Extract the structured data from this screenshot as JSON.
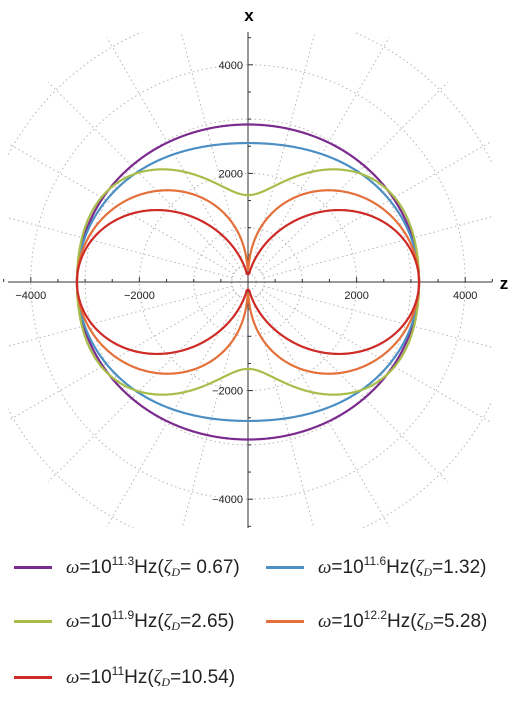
{
  "chart_data": {
    "type": "polar-line",
    "title": "",
    "xlabel": "z",
    "ylabel": "x",
    "xlim": [
      -4600,
      4600
    ],
    "ylim": [
      -4800,
      4800
    ],
    "x_ticks": [
      -4000,
      -2000,
      2000,
      4000
    ],
    "x_tick_labels": [
      "−4000",
      "−2000",
      "2000",
      "4000"
    ],
    "y_ticks": [
      4000,
      2000,
      -2000,
      -4000
    ],
    "y_tick_labels": [
      "4000",
      "2000",
      "−2000",
      "−4000"
    ],
    "grid": "polar-dotted",
    "polar_grid_radii": [
      1000,
      2000,
      3000,
      4000,
      5000
    ],
    "polar_grid_angle_step_deg": 15,
    "legend_position": "bottom",
    "series": [
      {
        "name": "ω=10^11.3 Hz(ζD= 0.67)",
        "omega_exp": "11.3",
        "zeta": " 0.67",
        "color": "#7b2a8e",
        "r_max_x": 2900,
        "r_max_z": 3150
      },
      {
        "name": "ω=10^11.6 Hz(ζD=1.32)",
        "omega_exp": "11.6",
        "zeta": "1.32",
        "color": "#4b8fc5",
        "r_max_x": 2560,
        "r_max_z": 3150
      },
      {
        "name": "ω=10^11.9 Hz(ζD=2.65)",
        "omega_exp": "11.9",
        "zeta": "2.65",
        "color": "#a8bd4a",
        "r_max_x": 1600,
        "r_max_z": 3150
      },
      {
        "name": "ω=10^12.2 Hz(ζD=5.28)",
        "omega_exp": "12.2",
        "zeta": "5.28",
        "color": "#e4703a",
        "r_max_x": 700,
        "r_max_z": 3150
      },
      {
        "name": "ω=10^11 Hz(ζD=10.54)",
        "omega_exp": "11",
        "zeta": "10.54",
        "color": "#cf2b26",
        "r_max_x": 110,
        "r_max_z": 3150
      }
    ]
  },
  "legend": {
    "items": [
      {
        "omega": "ω",
        "base": "=10",
        "exp": "11.3",
        "unit": "Hz(",
        "zeta": "ζ",
        "sub": "D",
        "value": "= 0.67)"
      },
      {
        "omega": "ω",
        "base": "=10",
        "exp": "11.6",
        "unit": "Hz(",
        "zeta": "ζ",
        "sub": "D",
        "value": "=1.32)"
      },
      {
        "omega": "ω",
        "base": "=10",
        "exp": "11.9",
        "unit": "Hz(",
        "zeta": "ζ",
        "sub": "D",
        "value": "=2.65)"
      },
      {
        "omega": "ω",
        "base": "=10",
        "exp": "12.2",
        "unit": "Hz(",
        "zeta": "ζ",
        "sub": "D",
        "value": "=5.28)"
      },
      {
        "omega": "ω",
        "base": "=10",
        "exp": "11",
        "unit": "Hz(",
        "zeta": "ζ",
        "sub": "D",
        "value": "=10.54)"
      }
    ]
  }
}
